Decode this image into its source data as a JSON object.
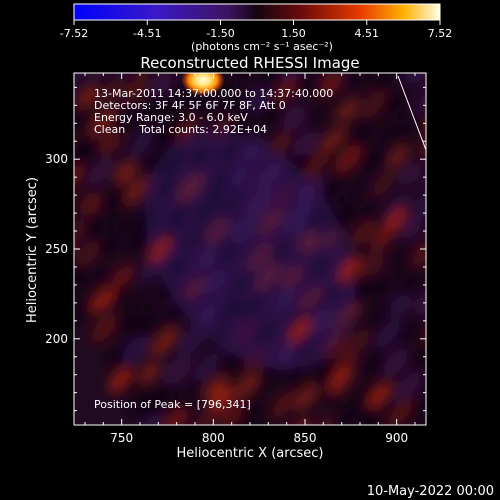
{
  "chart_data": {
    "type": "heatmap",
    "title": "Reconstructed RHESSI Image",
    "xlabel": "Heliocentric X (arcsec)",
    "ylabel": "Heliocentric Y (arcsec)",
    "xlim": [
      724,
      916
    ],
    "ylim": [
      152,
      348
    ],
    "xticks": [
      750,
      800,
      850,
      900
    ],
    "yticks": [
      200,
      250,
      300
    ],
    "colorbar": {
      "min": -7.52,
      "max": 7.52,
      "ticks": [
        "-7.52",
        "-4.51",
        "-1.50",
        "1.50",
        "4.51",
        "7.52"
      ],
      "unit_label": "(photons cm⁻² s⁻¹ asec⁻²)"
    },
    "annotations": [
      "13-Mar-2011 14:37:00.000 to 14:37:40.000",
      "Detectors: 3F 4F 5F 6F 7F 8F, Att 0",
      "Energy Range: 3.0 - 6.0 keV",
      "Clean    Total counts: 2.92E+04"
    ],
    "peak_label": "Position of Peak = [796,341]",
    "peak": {
      "x": 796,
      "y": 341,
      "value": 7.52
    }
  },
  "footer_date": "10-May-2022 00:00"
}
